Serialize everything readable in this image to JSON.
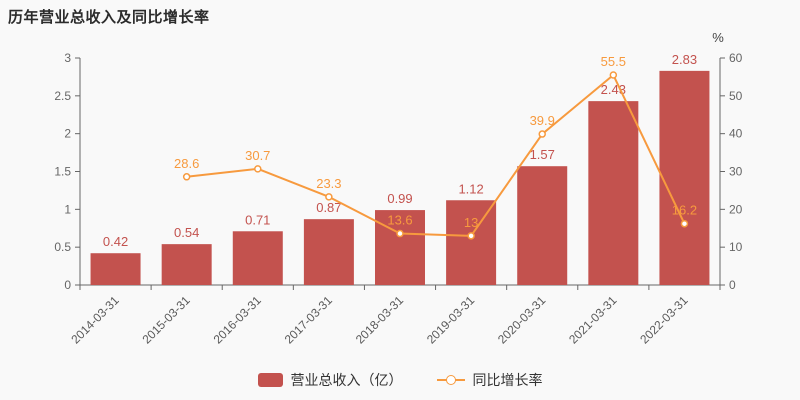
{
  "chart_data": {
    "type": "bar+line",
    "title": "历年营业总收入及同比增长率",
    "categories": [
      "2014-03-31",
      "2015-03-31",
      "2016-03-31",
      "2017-03-31",
      "2018-03-31",
      "2019-03-31",
      "2020-03-31",
      "2021-03-31",
      "2022-03-31"
    ],
    "series": [
      {
        "name": "营业总收入（亿）",
        "type": "bar",
        "axis": "left",
        "color": "#c3524e",
        "values": [
          0.42,
          0.54,
          0.71,
          0.87,
          0.99,
          1.12,
          1.57,
          2.43,
          2.83
        ],
        "labels": [
          "0.42",
          "0.54",
          "0.71",
          "0.87",
          "0.99",
          "1.12",
          "1.57",
          "2.43",
          "2.83"
        ]
      },
      {
        "name": "同比增长率",
        "type": "line",
        "axis": "right",
        "color": "#f79a3e",
        "values": [
          null,
          28.6,
          30.7,
          23.3,
          13.6,
          13,
          39.9,
          55.5,
          16.2
        ],
        "labels": [
          "",
          "28.6",
          "30.7",
          "23.3",
          "13.6",
          "13",
          "39.9",
          "55.5",
          "16.2"
        ]
      }
    ],
    "left_axis": {
      "min": 0,
      "max": 3,
      "ticks": [
        0,
        0.5,
        1,
        1.5,
        2,
        2.5,
        3
      ],
      "tick_labels": [
        "0",
        "0.5",
        "1",
        "1.5",
        "2",
        "2.5",
        "3"
      ]
    },
    "right_axis": {
      "min": 0,
      "max": 60,
      "ticks": [
        0,
        10,
        20,
        30,
        40,
        50,
        60
      ],
      "tick_labels": [
        "0",
        "10",
        "20",
        "30",
        "40",
        "50",
        "60"
      ],
      "unit": "%"
    },
    "grid": false,
    "legend_position": "bottom",
    "axis_color": "#666666",
    "label_font_px": 13,
    "tick_font_px": 12
  }
}
